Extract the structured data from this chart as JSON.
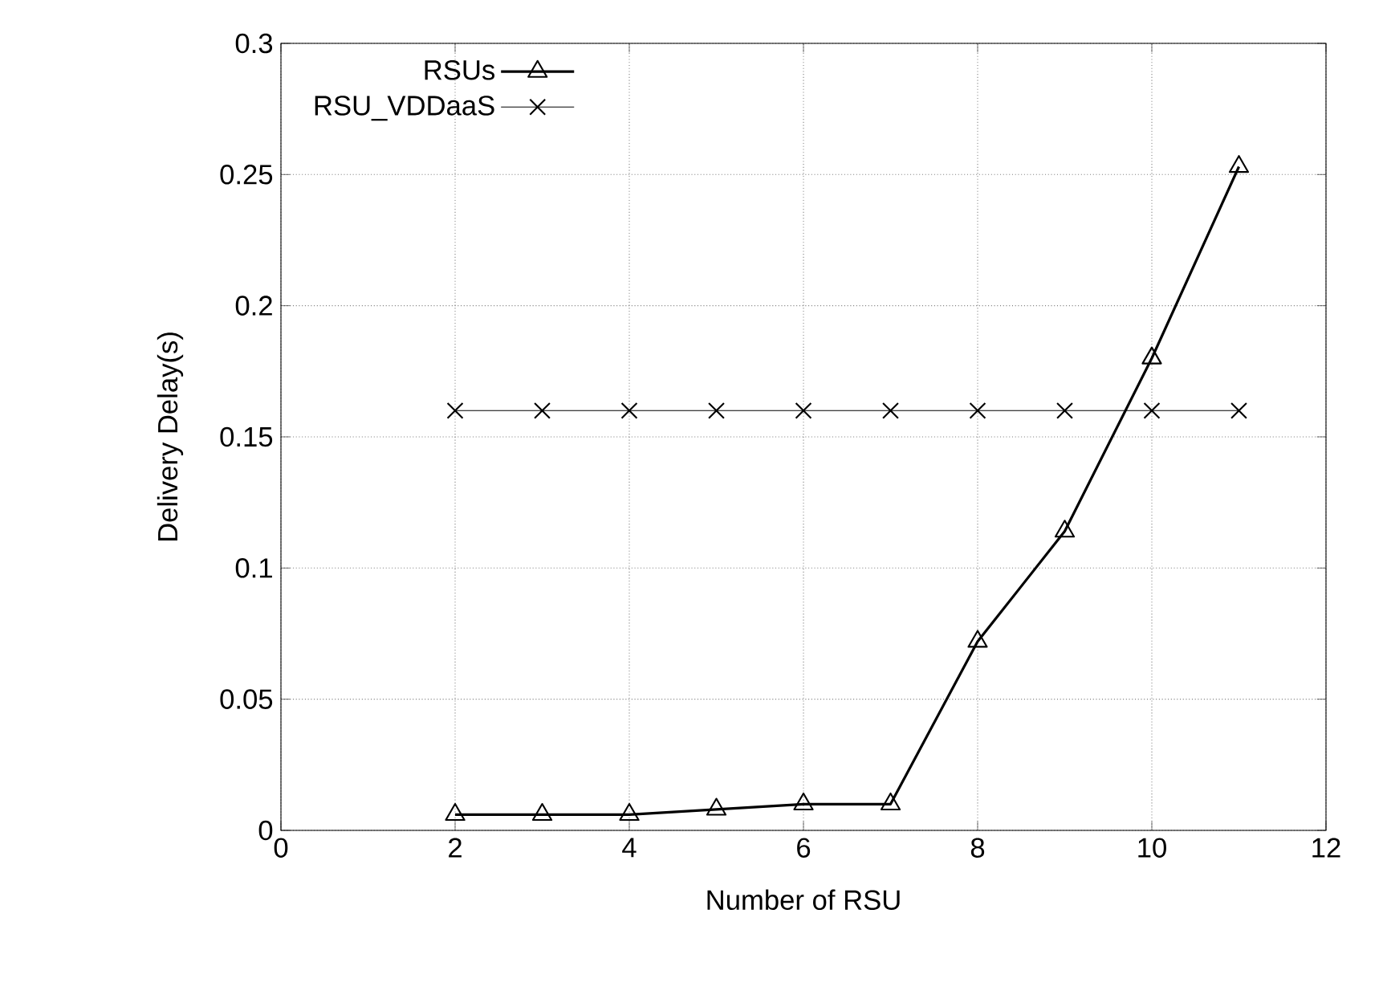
{
  "chart_data": {
    "type": "line",
    "xlabel": "Number of RSU",
    "ylabel": "Delivery Delay(s)",
    "xlim": [
      0,
      12
    ],
    "xticks": [
      0,
      2,
      4,
      6,
      8,
      10,
      12
    ],
    "ylim": [
      0,
      0.3
    ],
    "yticks": [
      0,
      0.05,
      0.1,
      0.15,
      0.2,
      0.25,
      0.3
    ],
    "grid": true,
    "legend": "top left",
    "line_style": "solid",
    "series": [
      {
        "name": "RSUs",
        "color": "#000000",
        "marker": "triangle",
        "x": [
          2,
          3,
          4,
          5,
          6,
          7,
          8,
          9,
          10,
          11
        ],
        "values": [
          0.006,
          0.006,
          0.006,
          0.008,
          0.01,
          0.01,
          0.072,
          0.114,
          0.18,
          0.253
        ]
      },
      {
        "name": "RSU_VDDaaS",
        "color": "#000000",
        "marker": "cross",
        "x": [
          2,
          3,
          4,
          5,
          6,
          7,
          8,
          9,
          10,
          11
        ],
        "values": [
          0.16,
          0.16,
          0.16,
          0.16,
          0.16,
          0.16,
          0.16,
          0.16,
          0.16,
          0.16
        ]
      }
    ]
  }
}
